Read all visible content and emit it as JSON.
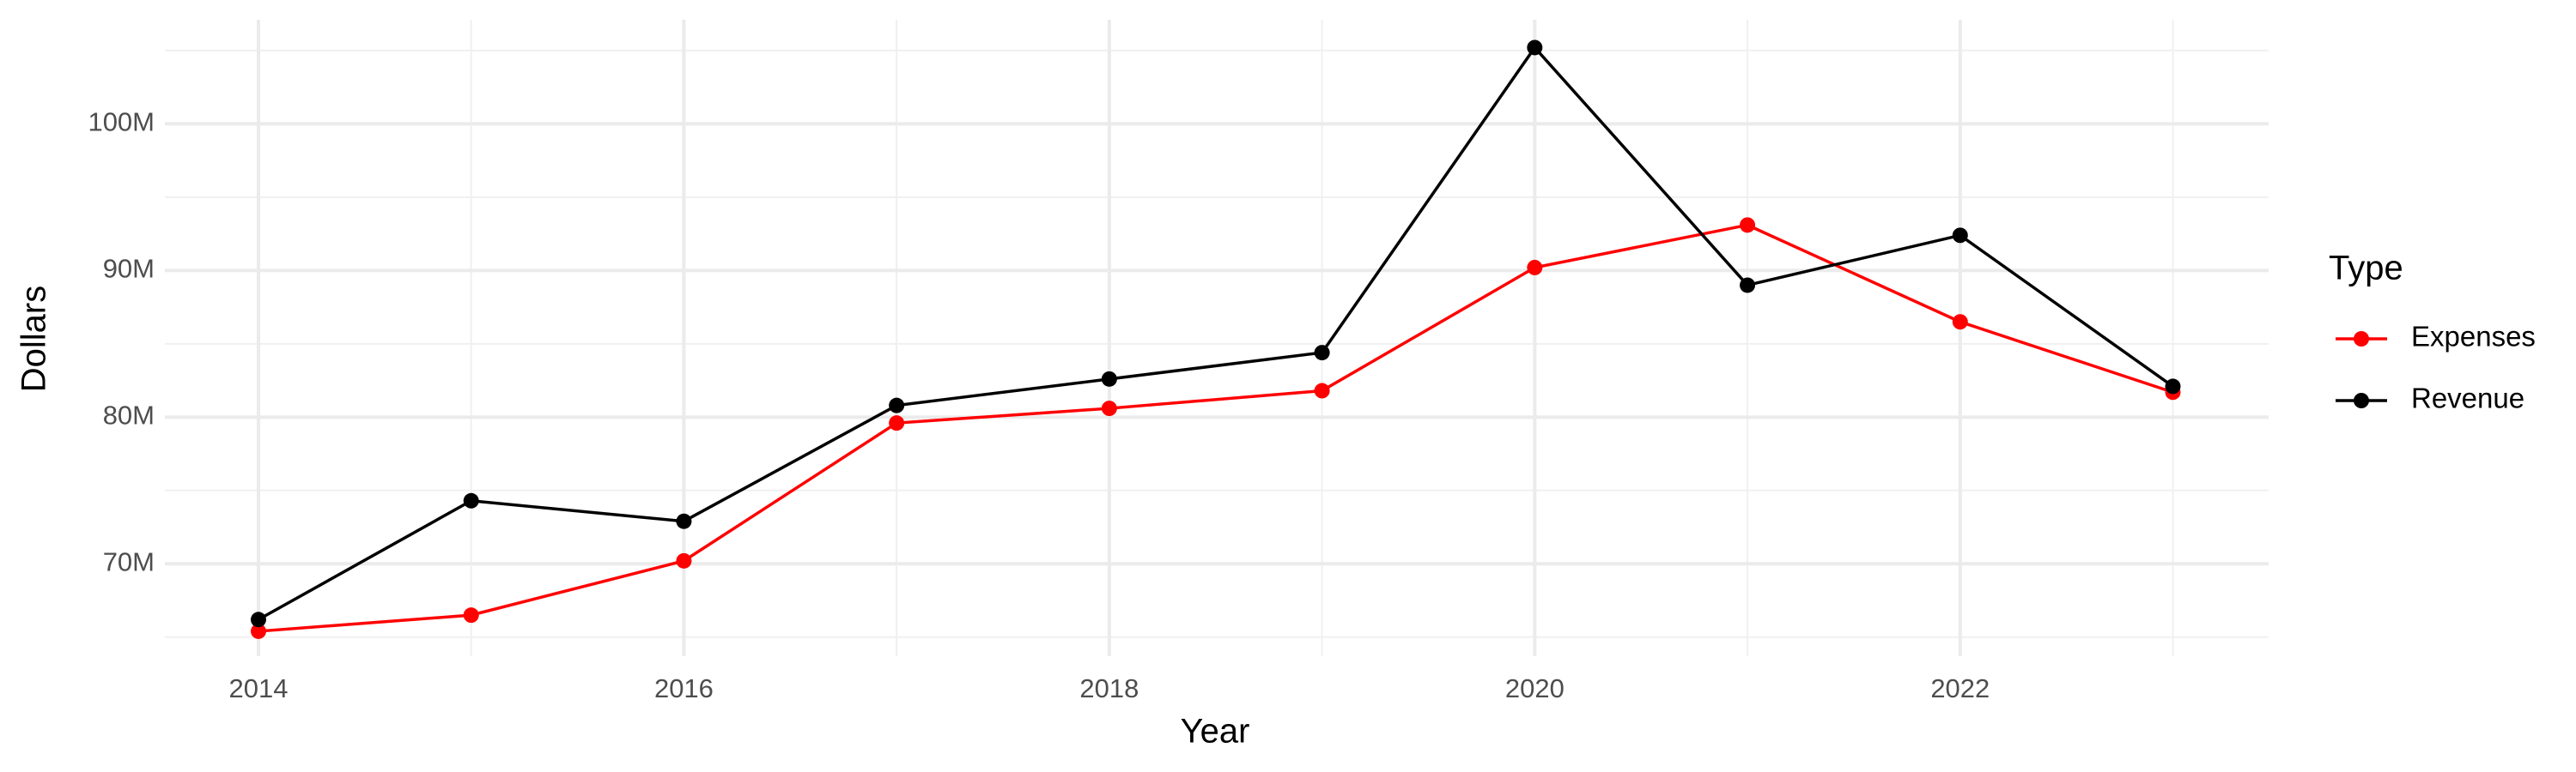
{
  "chart_data": {
    "type": "line",
    "x_label": "Year",
    "y_label": "Dollars",
    "legend_title": "Type",
    "x": [
      2014,
      2015,
      2016,
      2017,
      2018,
      2019,
      2020,
      2021,
      2022,
      2023
    ],
    "series": [
      {
        "name": "Expenses",
        "color": "#ff0000",
        "values": [
          65400000,
          66500000,
          70200000,
          79600000,
          80600000,
          81800000,
          90200000,
          93100000,
          86500000,
          81700000
        ]
      },
      {
        "name": "Revenue",
        "color": "#000000",
        "values": [
          66200000,
          74300000,
          72900000,
          80800000,
          82600000,
          84400000,
          105200000,
          89000000,
          92400000,
          82100000
        ]
      }
    ],
    "xlim": [
      2013.56,
      2023.45
    ],
    "xticks": [
      2014,
      2016,
      2018,
      2020,
      2022
    ],
    "minor_xticks": [
      2015,
      2017,
      2019,
      2021,
      2023
    ],
    "ylim": [
      63700000,
      107100000
    ],
    "yticks": [
      {
        "value": 70000000,
        "label": "70M"
      },
      {
        "value": 80000000,
        "label": "80M"
      },
      {
        "value": 90000000,
        "label": "90M"
      },
      {
        "value": 100000000,
        "label": "100M"
      }
    ],
    "minor_yticks": [
      65000000,
      75000000,
      85000000,
      95000000,
      105000000
    ],
    "grid": true,
    "legend": "right"
  }
}
